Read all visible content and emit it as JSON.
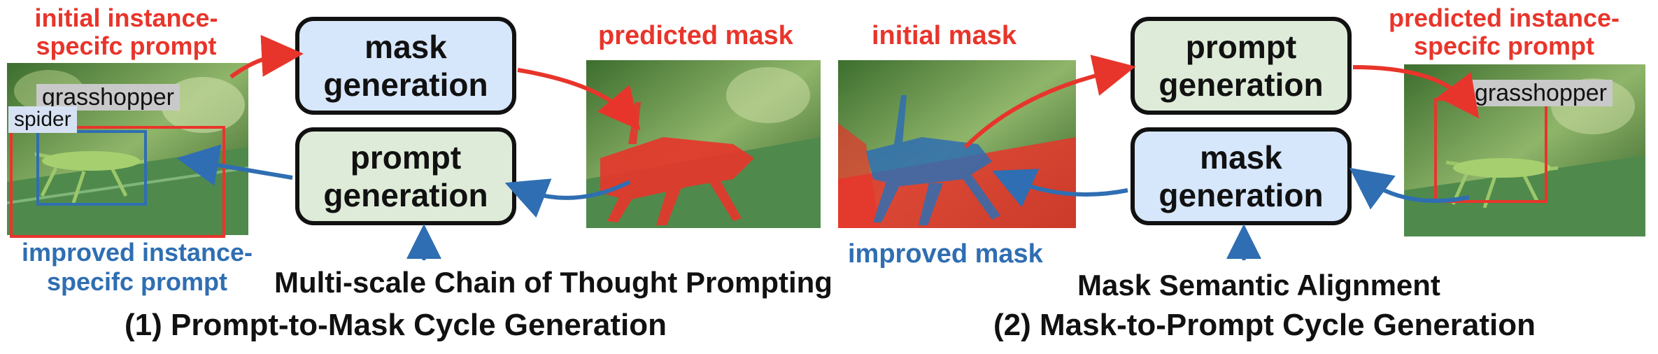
{
  "panel1": {
    "top_left_label": "initial instance-\nspecifc prompt",
    "box_top": "mask\ngeneration",
    "box_bottom": "prompt\ngeneration",
    "top_right_label": "predicted mask",
    "bottom_left_label": "improved instance-\nspecifc prompt",
    "module_label": "Multi-scale Chain of Thought Prompting",
    "caption": "(1) Prompt-to-Mask Cycle Generation",
    "tag_grasshopper": "grasshopper",
    "tag_spider": "spider"
  },
  "panel2": {
    "top_left_label": "initial mask",
    "box_top": "prompt\ngeneration",
    "box_bottom": "mask\ngeneration",
    "top_right_label": "predicted instance-\nspecifc prompt",
    "bottom_left_label": "improved mask",
    "module_label": "Mask Semantic Alignment",
    "caption": "(2) Mask-to-Prompt Cycle Generation",
    "tag_grasshopper": "grasshopper"
  },
  "colors": {
    "red": "#e8352b",
    "blue": "#2f6eb2",
    "box_blue": "#d6e6fb",
    "box_green": "#deebd8"
  },
  "icons": [
    "grasshopper-photo",
    "mask-overlay-red",
    "mask-overlay-blue",
    "bounding-box",
    "flow-arrow"
  ]
}
